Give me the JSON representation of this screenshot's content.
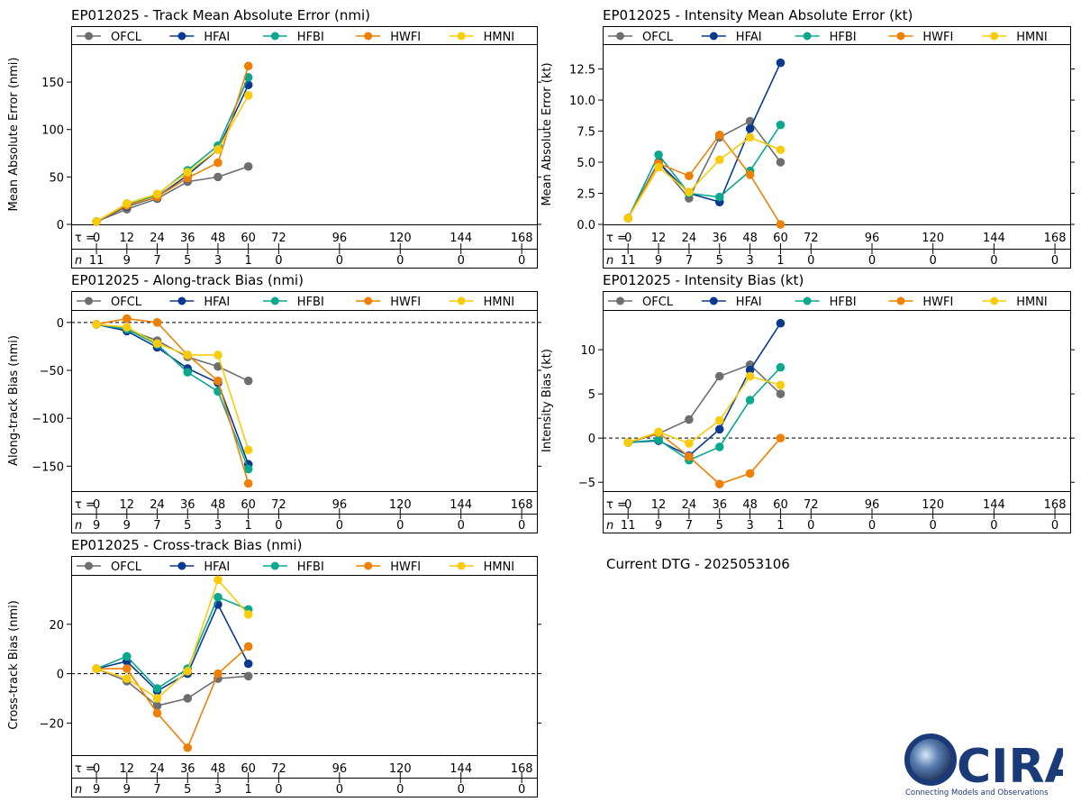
{
  "models": [
    {
      "name": "OFCL",
      "color": "#6e6e6e"
    },
    {
      "name": "HFAI",
      "color": "#0a3a8f"
    },
    {
      "name": "HFBI",
      "color": "#0aa88e"
    },
    {
      "name": "HWFI",
      "color": "#ee8006"
    },
    {
      "name": "HMNI",
      "color": "#f8cc0c"
    }
  ],
  "tau_label": "τ =",
  "n_label": "n",
  "current_dtg": "Current DTG - 2025053106",
  "logo": {
    "text": "CIRA",
    "tagline": "Connecting Models and Observations"
  },
  "chart_data": [
    {
      "id": "track-mae",
      "type": "line",
      "title": "EP012025 - Track Mean Absolute Error (nmi)",
      "ylabel": "Mean Absolute Error (nmi)",
      "ylim": [
        0,
        190
      ],
      "yticks": [
        0,
        50,
        100,
        150
      ],
      "ytick_side": "left",
      "zero_line": false,
      "tau": [
        "0",
        "12",
        "24",
        "36",
        "48",
        "60",
        "72",
        "96",
        "120",
        "144",
        "168"
      ],
      "n": [
        "11",
        "9",
        "7",
        "5",
        "3",
        "1",
        "0",
        "0",
        "0",
        "0",
        "0"
      ],
      "x": [
        0,
        12,
        24,
        36,
        48,
        60
      ],
      "series": [
        {
          "name": "OFCL",
          "values": [
            3,
            16,
            27,
            45,
            50,
            61
          ]
        },
        {
          "name": "HFAI",
          "values": [
            3,
            19,
            29,
            52,
            79,
            147
          ]
        },
        {
          "name": "HFBI",
          "values": [
            3,
            21,
            31,
            57,
            83,
            155
          ]
        },
        {
          "name": "HWFI",
          "values": [
            3,
            20,
            29,
            49,
            65,
            167
          ]
        },
        {
          "name": "HMNI",
          "values": [
            3,
            22,
            32,
            55,
            79,
            136
          ]
        }
      ]
    },
    {
      "id": "intensity-mae",
      "type": "line",
      "title": "EP012025 - Intensity Mean Absolute Error (kt)",
      "ylabel": "Mean Absolute Error (kt)",
      "ylim": [
        0,
        14.5
      ],
      "yticks": [
        "0.0",
        "2.5",
        "5.0",
        "7.5",
        "10.0",
        "12.5"
      ],
      "ytick_side": "left",
      "zero_line": false,
      "tau": [
        "0",
        "12",
        "24",
        "36",
        "48",
        "60",
        "72",
        "96",
        "120",
        "144",
        "168"
      ],
      "n": [
        "11",
        "9",
        "7",
        "5",
        "3",
        "1",
        "0",
        "0",
        "0",
        "0",
        "0"
      ],
      "x": [
        0,
        12,
        24,
        36,
        48,
        60
      ],
      "series": [
        {
          "name": "OFCL",
          "values": [
            0.5,
            5.0,
            2.1,
            7.0,
            8.3,
            5.0
          ]
        },
        {
          "name": "HFAI",
          "values": [
            0.5,
            5.0,
            2.5,
            1.8,
            7.7,
            13.0
          ]
        },
        {
          "name": "HFBI",
          "values": [
            0.5,
            5.6,
            2.5,
            2.2,
            4.3,
            8.0
          ]
        },
        {
          "name": "HWFI",
          "values": [
            0.5,
            4.9,
            3.9,
            7.2,
            4.0,
            0.0
          ]
        },
        {
          "name": "HMNI",
          "values": [
            0.5,
            4.6,
            2.6,
            5.2,
            7.0,
            6.0
          ]
        }
      ]
    },
    {
      "id": "along-track-bias",
      "type": "line",
      "title": "EP012025 - Along-track Bias (nmi)",
      "ylabel": "Along-track Bias (nmi)",
      "ylim": [
        -176,
        13
      ],
      "yticks": [
        -150,
        -100,
        -50,
        0
      ],
      "ytick_side": "left",
      "zero_line": true,
      "tau": [
        "0",
        "12",
        "24",
        "36",
        "48",
        "60",
        "72",
        "96",
        "120",
        "144",
        "168"
      ],
      "n": [
        "9",
        "9",
        "7",
        "5",
        "3",
        "1",
        "0",
        "0",
        "0",
        "0",
        "0"
      ],
      "x": [
        0,
        12,
        24,
        36,
        48,
        60
      ],
      "series": [
        {
          "name": "OFCL",
          "values": [
            -2,
            -7,
            -19,
            -36,
            -46,
            -61
          ]
        },
        {
          "name": "HFAI",
          "values": [
            -2,
            -9,
            -26,
            -48,
            -63,
            -148
          ]
        },
        {
          "name": "HFBI",
          "values": [
            -2,
            -7,
            -23,
            -52,
            -72,
            -153
          ]
        },
        {
          "name": "HWFI",
          "values": [
            -2,
            4,
            0,
            -34,
            -61,
            -168
          ]
        },
        {
          "name": "HMNI",
          "values": [
            -2,
            -5,
            -22,
            -34,
            -34,
            -133
          ]
        }
      ]
    },
    {
      "id": "intensity-bias",
      "type": "line",
      "title": "EP012025 - Intensity Bias (kt)",
      "ylabel": "Intensity Bias (kt)",
      "ylim": [
        -6,
        14.5
      ],
      "yticks": [
        -5,
        0,
        5,
        10
      ],
      "ytick_side": "left",
      "zero_line": true,
      "tau": [
        "0",
        "12",
        "24",
        "36",
        "48",
        "60",
        "72",
        "96",
        "120",
        "144",
        "168"
      ],
      "n": [
        "11",
        "9",
        "7",
        "5",
        "3",
        "1",
        "0",
        "0",
        "0",
        "0",
        "0"
      ],
      "x": [
        0,
        12,
        24,
        36,
        48,
        60
      ],
      "series": [
        {
          "name": "OFCL",
          "values": [
            -0.5,
            0.5,
            2.1,
            7.0,
            8.3,
            5.0
          ]
        },
        {
          "name": "HFAI",
          "values": [
            -0.5,
            -0.3,
            -2.0,
            1.0,
            7.7,
            13.0
          ]
        },
        {
          "name": "HFBI",
          "values": [
            -0.5,
            -0.2,
            -2.5,
            -1.0,
            4.3,
            8.0
          ]
        },
        {
          "name": "HWFI",
          "values": [
            -0.5,
            0.6,
            -2.1,
            -5.2,
            -4.0,
            0.0
          ]
        },
        {
          "name": "HMNI",
          "values": [
            -0.5,
            0.7,
            -0.6,
            2.0,
            7.0,
            6.0
          ]
        }
      ]
    },
    {
      "id": "cross-track-bias",
      "type": "line",
      "title": "EP012025 - Cross-track Bias (nmi)",
      "ylabel": "Cross-track Bias (nmi)",
      "ylim": [
        -33,
        40
      ],
      "yticks": [
        -20,
        0,
        20
      ],
      "ytick_side": "left",
      "zero_line": true,
      "tau": [
        "0",
        "12",
        "24",
        "36",
        "48",
        "60",
        "72",
        "96",
        "120",
        "144",
        "168"
      ],
      "n": [
        "9",
        "9",
        "7",
        "5",
        "3",
        "1",
        "0",
        "0",
        "0",
        "0",
        "0"
      ],
      "x": [
        0,
        12,
        24,
        36,
        48,
        60
      ],
      "series": [
        {
          "name": "OFCL",
          "values": [
            2,
            -3,
            -13,
            -10,
            -2,
            -1
          ]
        },
        {
          "name": "HFAI",
          "values": [
            2,
            5,
            -7,
            0,
            28,
            4
          ]
        },
        {
          "name": "HFBI",
          "values": [
            2,
            7,
            -6,
            2,
            31,
            26
          ]
        },
        {
          "name": "HWFI",
          "values": [
            2,
            2,
            -16,
            -30,
            0,
            11
          ]
        },
        {
          "name": "HMNI",
          "values": [
            2,
            -2,
            -10,
            1,
            38,
            24
          ]
        }
      ]
    }
  ]
}
